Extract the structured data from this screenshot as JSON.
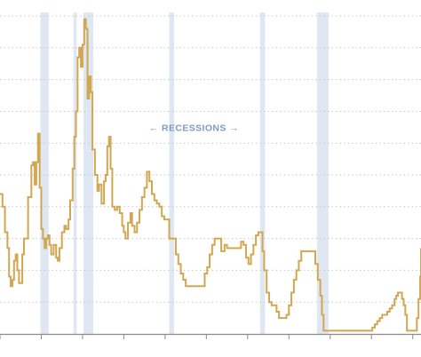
{
  "chart_data": {
    "type": "line",
    "xlim": [
      1965,
      2016
    ],
    "ylim": [
      0,
      10
    ],
    "ytick_values": [
      1,
      2,
      3,
      4,
      5,
      6,
      7,
      8,
      9,
      10
    ],
    "xtick_values": [
      1965,
      1970,
      1975,
      1980,
      1985,
      1990,
      1995,
      2000,
      2005,
      2010,
      2015
    ],
    "grid": true,
    "annotation": {
      "text": "← RECESSIONS →",
      "x": 1988.5,
      "y": 6.5
    },
    "recessions": [
      {
        "start": 1969.9,
        "end": 1970.9
      },
      {
        "start": 1973.9,
        "end": 1974.3
      },
      {
        "start": 1975.1,
        "end": 1976.3
      },
      {
        "start": 1985.5,
        "end": 1986.1
      },
      {
        "start": 1996.5,
        "end": 1997.1
      },
      {
        "start": 2003.4,
        "end": 2004.8
      }
    ],
    "series": [
      {
        "color": "#d1a752",
        "points": [
          [
            1965.0,
            4.4
          ],
          [
            1965.3,
            4.0
          ],
          [
            1965.6,
            3.2
          ],
          [
            1965.9,
            2.7
          ],
          [
            1966.1,
            1.8
          ],
          [
            1966.3,
            1.5
          ],
          [
            1966.5,
            1.7
          ],
          [
            1966.7,
            2.3
          ],
          [
            1966.9,
            2.5
          ],
          [
            1967.1,
            2.0
          ],
          [
            1967.3,
            1.6
          ],
          [
            1967.5,
            1.6
          ],
          [
            1967.7,
            2.5
          ],
          [
            1967.9,
            3.0
          ],
          [
            1968.1,
            3.0
          ],
          [
            1968.4,
            4.3
          ],
          [
            1968.8,
            5.3
          ],
          [
            1969.0,
            5.4
          ],
          [
            1969.2,
            4.7
          ],
          [
            1969.4,
            5.4
          ],
          [
            1969.6,
            6.3
          ],
          [
            1969.8,
            4.6
          ],
          [
            1970.0,
            3.3
          ],
          [
            1970.2,
            3.0
          ],
          [
            1970.4,
            2.7
          ],
          [
            1970.6,
            3.0
          ],
          [
            1970.8,
            3.1
          ],
          [
            1971.0,
            2.8
          ],
          [
            1971.2,
            2.5
          ],
          [
            1971.5,
            2.8
          ],
          [
            1971.8,
            2.4
          ],
          [
            1972.0,
            2.3
          ],
          [
            1972.2,
            2.7
          ],
          [
            1972.5,
            3.2
          ],
          [
            1972.8,
            3.4
          ],
          [
            1973.0,
            3.3
          ],
          [
            1973.3,
            3.6
          ],
          [
            1973.5,
            4.2
          ],
          [
            1973.8,
            5.2
          ],
          [
            1974.0,
            6.2
          ],
          [
            1974.2,
            7.0
          ],
          [
            1974.4,
            8.7
          ],
          [
            1974.6,
            9.0
          ],
          [
            1974.8,
            8.4
          ],
          [
            1975.0,
            9.1
          ],
          [
            1975.2,
            9.9
          ],
          [
            1975.4,
            9.6
          ],
          [
            1975.6,
            7.4
          ],
          [
            1975.8,
            8.1
          ],
          [
            1976.0,
            7.6
          ],
          [
            1976.2,
            5.8
          ],
          [
            1976.5,
            5.0
          ],
          [
            1976.8,
            4.5
          ],
          [
            1977.0,
            4.7
          ],
          [
            1977.3,
            4.1
          ],
          [
            1977.6,
            4.8
          ],
          [
            1977.8,
            5.0
          ],
          [
            1978.0,
            5.9
          ],
          [
            1978.2,
            6.2
          ],
          [
            1978.4,
            5.2
          ],
          [
            1978.6,
            4.0
          ],
          [
            1978.9,
            3.9
          ],
          [
            1979.2,
            4.0
          ],
          [
            1979.5,
            3.8
          ],
          [
            1979.8,
            3.4
          ],
          [
            1980.0,
            3.2
          ],
          [
            1980.2,
            3.0
          ],
          [
            1980.5,
            3.5
          ],
          [
            1980.8,
            3.8
          ],
          [
            1981.0,
            3.4
          ],
          [
            1981.3,
            3.2
          ],
          [
            1981.6,
            3.5
          ],
          [
            1981.9,
            3.9
          ],
          [
            1982.2,
            4.3
          ],
          [
            1982.5,
            4.6
          ],
          [
            1982.8,
            5.1
          ],
          [
            1983.1,
            4.8
          ],
          [
            1983.4,
            4.4
          ],
          [
            1983.7,
            4.2
          ],
          [
            1984.0,
            4.1
          ],
          [
            1984.3,
            4.0
          ],
          [
            1984.6,
            3.7
          ],
          [
            1984.9,
            3.6
          ],
          [
            1985.2,
            3.6
          ],
          [
            1985.5,
            3.0
          ],
          [
            1985.8,
            3.0
          ],
          [
            1986.0,
            3.0
          ],
          [
            1986.3,
            2.5
          ],
          [
            1986.6,
            2.2
          ],
          [
            1986.9,
            1.9
          ],
          [
            1987.2,
            1.7
          ],
          [
            1987.5,
            1.5
          ],
          [
            1987.8,
            1.5
          ],
          [
            1988.5,
            1.5
          ],
          [
            1989.2,
            1.5
          ],
          [
            1989.5,
            1.5
          ],
          [
            1989.8,
            1.9
          ],
          [
            1990.1,
            2.1
          ],
          [
            1990.4,
            2.5
          ],
          [
            1990.7,
            2.8
          ],
          [
            1991.0,
            3.0
          ],
          [
            1991.5,
            3.0
          ],
          [
            1991.8,
            2.6
          ],
          [
            1992.2,
            2.8
          ],
          [
            1992.5,
            2.7
          ],
          [
            1993.0,
            2.7
          ],
          [
            1993.5,
            2.7
          ],
          [
            1994.0,
            2.7
          ],
          [
            1994.2,
            2.9
          ],
          [
            1994.5,
            2.8
          ],
          [
            1994.8,
            2.4
          ],
          [
            1995.1,
            2.2
          ],
          [
            1995.4,
            2.5
          ],
          [
            1995.7,
            2.8
          ],
          [
            1996.0,
            3.1
          ],
          [
            1996.3,
            3.2
          ],
          [
            1996.6,
            3.2
          ],
          [
            1996.8,
            2.6
          ],
          [
            1997.0,
            2.0
          ],
          [
            1997.3,
            1.3
          ],
          [
            1997.6,
            1.0
          ],
          [
            1997.9,
            0.9
          ],
          [
            1998.2,
            0.9
          ],
          [
            1998.5,
            0.7
          ],
          [
            1998.8,
            0.5
          ],
          [
            1999.1,
            0.5
          ],
          [
            1999.4,
            0.5
          ],
          [
            1999.7,
            0.6
          ],
          [
            2000.0,
            0.9
          ],
          [
            2000.3,
            1.3
          ],
          [
            2000.6,
            1.7
          ],
          [
            2000.9,
            2.0
          ],
          [
            2001.2,
            2.3
          ],
          [
            2001.5,
            2.6
          ],
          [
            2001.8,
            2.6
          ],
          [
            2002.5,
            2.6
          ],
          [
            2002.8,
            2.6
          ],
          [
            2003.0,
            2.6
          ],
          [
            2003.2,
            2.2
          ],
          [
            2003.5,
            1.7
          ],
          [
            2003.8,
            1.2
          ],
          [
            2004.0,
            0.6
          ],
          [
            2004.2,
            0.1
          ],
          [
            2004.5,
            0.1
          ],
          [
            2005.5,
            0.1
          ],
          [
            2007.0,
            0.1
          ],
          [
            2008.5,
            0.1
          ],
          [
            2009.8,
            0.1
          ],
          [
            2010.1,
            0.2
          ],
          [
            2010.4,
            0.3
          ],
          [
            2010.7,
            0.4
          ],
          [
            2011.0,
            0.5
          ],
          [
            2011.3,
            0.6
          ],
          [
            2011.6,
            0.6
          ],
          [
            2011.9,
            0.7
          ],
          [
            2012.2,
            0.8
          ],
          [
            2012.5,
            0.9
          ],
          [
            2012.8,
            1.1
          ],
          [
            2013.0,
            1.2
          ],
          [
            2013.2,
            1.3
          ],
          [
            2013.5,
            1.3
          ],
          [
            2013.7,
            1.1
          ],
          [
            2013.9,
            0.9
          ],
          [
            2014.1,
            0.6
          ],
          [
            2014.3,
            0.1
          ],
          [
            2014.6,
            0.1
          ],
          [
            2015.1,
            0.1
          ],
          [
            2015.3,
            0.1
          ],
          [
            2015.5,
            0.5
          ],
          [
            2015.7,
            1.1
          ],
          [
            2015.9,
            1.8
          ],
          [
            2016.0,
            2.5
          ],
          [
            2016.0,
            2.7
          ]
        ]
      }
    ],
    "colors": {
      "line": "#d1a752",
      "recession_band": "#dde6f1",
      "annotation": "#7f9bc0",
      "grid": "#c9c9c9",
      "axis": "#8a8a8a"
    }
  }
}
